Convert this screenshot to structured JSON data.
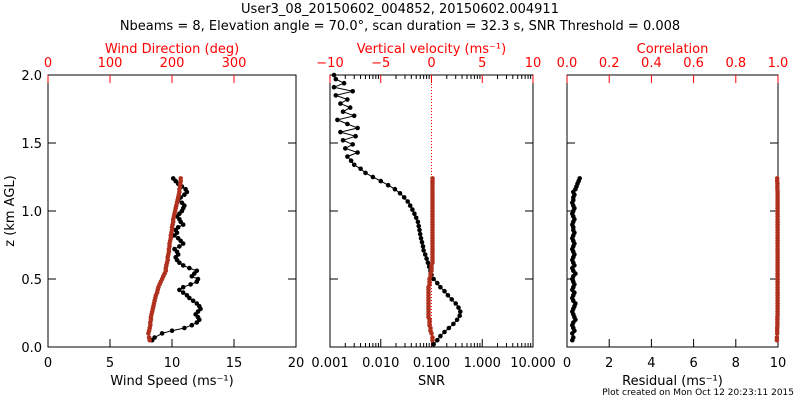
{
  "header": {
    "title_line1": "User3_08_20150602_004852, 20150602.004911",
    "title_line2": "Nbeams = 8, Elevation angle = 70.0°, scan duration = 32.3 s, SNR Threshold = 0.008"
  },
  "footer": {
    "created": "Plot created on Mon Oct 12 20:23:11 2015"
  },
  "colors": {
    "primary": "#000000",
    "secondary": "#b0301e",
    "axis_red": "#ff0000"
  },
  "chart_data": [
    {
      "type": "scatter",
      "panel": "wind",
      "ylabel": "z (km AGL)",
      "ylim": [
        0,
        2.0
      ],
      "yticks": [
        "0.0",
        "0.5",
        "1.0",
        "1.5",
        "2.0"
      ],
      "bottom_axis": {
        "label": "Wind Speed (ms⁻¹)",
        "lim": [
          0,
          20
        ],
        "ticks": [
          "0",
          "5",
          "10",
          "15",
          "20"
        ]
      },
      "top_axis": {
        "label": "Wind Direction (deg)",
        "lim": [
          0,
          400
        ],
        "ticks": [
          "0",
          "100",
          "200",
          "300"
        ]
      },
      "series": [
        {
          "axis": "bottom",
          "color": "black",
          "z": [
            0.05,
            0.07,
            0.1,
            0.12,
            0.14,
            0.16,
            0.18,
            0.2,
            0.22,
            0.24,
            0.26,
            0.28,
            0.3,
            0.32,
            0.34,
            0.36,
            0.38,
            0.4,
            0.42,
            0.44,
            0.46,
            0.48,
            0.5,
            0.52,
            0.54,
            0.56,
            0.58,
            0.6,
            0.62,
            0.64,
            0.66,
            0.68,
            0.7,
            0.72,
            0.74,
            0.76,
            0.78,
            0.8,
            0.82,
            0.84,
            0.86,
            0.88,
            0.9,
            0.92,
            0.94,
            0.96,
            0.98,
            1.0,
            1.02,
            1.04,
            1.06,
            1.08,
            1.1,
            1.12,
            1.14,
            1.16,
            1.18,
            1.2,
            1.22,
            1.24
          ],
          "values": [
            8.4,
            8.6,
            9.2,
            10.0,
            11.0,
            11.6,
            12.0,
            12.2,
            12.1,
            11.9,
            12.1,
            12.3,
            12.2,
            12.0,
            11.7,
            11.4,
            11.2,
            10.9,
            10.6,
            10.9,
            11.5,
            12.0,
            12.1,
            11.6,
            11.8,
            12.0,
            11.4,
            10.9,
            10.6,
            10.4,
            10.3,
            10.5,
            10.4,
            10.2,
            10.6,
            10.9,
            10.7,
            10.5,
            10.2,
            10.4,
            10.3,
            10.5,
            10.9,
            10.7,
            10.6,
            10.4,
            10.6,
            10.8,
            10.9,
            11.0,
            10.8,
            10.5,
            10.7,
            11.0,
            11.2,
            11.1,
            10.8,
            10.5,
            10.3,
            10.1
          ]
        },
        {
          "axis": "top",
          "color": "red",
          "z": [
            0.05,
            0.07,
            0.1,
            0.12,
            0.14,
            0.16,
            0.18,
            0.2,
            0.22,
            0.24,
            0.26,
            0.28,
            0.3,
            0.32,
            0.34,
            0.36,
            0.38,
            0.4,
            0.42,
            0.44,
            0.46,
            0.48,
            0.5,
            0.52,
            0.54,
            0.56,
            0.58,
            0.6,
            0.62,
            0.64,
            0.66,
            0.68,
            0.7,
            0.72,
            0.74,
            0.76,
            0.78,
            0.8,
            0.82,
            0.84,
            0.86,
            0.88,
            0.9,
            0.92,
            0.94,
            0.96,
            0.98,
            1.0,
            1.02,
            1.04,
            1.06,
            1.08,
            1.1,
            1.12,
            1.14,
            1.16,
            1.18,
            1.2,
            1.22,
            1.24
          ],
          "values": [
            164,
            163,
            162,
            163,
            164,
            165,
            165,
            166,
            166,
            167,
            168,
            169,
            170,
            171,
            172,
            173,
            174,
            176,
            177,
            178,
            180,
            182,
            184,
            186,
            188,
            190,
            190,
            191,
            192,
            193,
            193,
            194,
            195,
            195,
            196,
            196,
            197,
            198,
            198,
            199,
            200,
            200,
            201,
            202,
            202,
            203,
            204,
            205,
            206,
            207,
            208,
            209,
            210,
            211,
            212,
            212,
            213,
            213,
            214,
            214
          ]
        }
      ]
    },
    {
      "type": "scatter",
      "panel": "snr",
      "ylim": [
        0,
        2.0
      ],
      "bottom_axis": {
        "label": "SNR",
        "scale": "log",
        "lim": [
          0.001,
          10
        ],
        "ticks": [
          "0.001",
          "0.010",
          "0.100",
          "1.000",
          "10.000"
        ]
      },
      "top_axis": {
        "label": "Vertical velocity (ms⁻¹)",
        "lim": [
          -10,
          10
        ],
        "ticks": [
          "−10",
          "−5",
          "0",
          "5",
          "10"
        ]
      },
      "series": [
        {
          "axis": "bottom",
          "color": "black",
          "z": [
            0.02,
            0.05,
            0.08,
            0.11,
            0.14,
            0.17,
            0.2,
            0.23,
            0.26,
            0.29,
            0.32,
            0.35,
            0.38,
            0.41,
            0.44,
            0.47,
            0.5,
            0.53,
            0.56,
            0.59,
            0.62,
            0.65,
            0.68,
            0.71,
            0.74,
            0.77,
            0.8,
            0.83,
            0.86,
            0.89,
            0.92,
            0.95,
            0.98,
            1.01,
            1.04,
            1.07,
            1.1,
            1.13,
            1.16,
            1.19,
            1.22,
            1.25,
            1.28,
            1.31,
            1.34,
            1.37,
            1.4,
            1.43,
            1.46,
            1.49,
            1.52,
            1.55,
            1.58,
            1.61,
            1.64,
            1.67,
            1.7,
            1.73,
            1.76,
            1.79,
            1.82,
            1.85,
            1.88,
            1.91,
            1.94,
            1.97,
            2.0
          ],
          "values": [
            0.11,
            0.13,
            0.15,
            0.18,
            0.22,
            0.27,
            0.32,
            0.36,
            0.37,
            0.34,
            0.3,
            0.25,
            0.21,
            0.18,
            0.15,
            0.13,
            0.11,
            0.1,
            0.095,
            0.09,
            0.085,
            0.08,
            0.075,
            0.07,
            0.068,
            0.065,
            0.062,
            0.06,
            0.058,
            0.056,
            0.054,
            0.05,
            0.046,
            0.042,
            0.038,
            0.034,
            0.029,
            0.024,
            0.019,
            0.014,
            0.01,
            0.007,
            0.005,
            0.004,
            0.003,
            0.0026,
            0.0022,
            0.0035,
            0.002,
            0.0028,
            0.0018,
            0.0032,
            0.0016,
            0.0035,
            0.0022,
            0.0014,
            0.003,
            0.0018,
            0.0025,
            0.0016,
            0.0022,
            0.0013,
            0.0028,
            0.0012,
            0.0019,
            0.0013,
            0.0012
          ]
        },
        {
          "axis": "top",
          "color": "red",
          "z": [
            0.05,
            0.07,
            0.1,
            0.12,
            0.14,
            0.16,
            0.18,
            0.2,
            0.22,
            0.24,
            0.26,
            0.28,
            0.3,
            0.32,
            0.34,
            0.36,
            0.38,
            0.4,
            0.42,
            0.44,
            0.46,
            0.48,
            0.5,
            0.52,
            0.54,
            0.56,
            0.58,
            0.6,
            0.62,
            0.64,
            0.66,
            0.68,
            0.7,
            0.72,
            0.74,
            0.76,
            0.78,
            0.8,
            0.82,
            0.84,
            0.86,
            0.88,
            0.9,
            0.92,
            0.94,
            0.96,
            0.98,
            1.0,
            1.02,
            1.04,
            1.06,
            1.08,
            1.1,
            1.12,
            1.14,
            1.16,
            1.18,
            1.2,
            1.22,
            1.24
          ],
          "values": [
            0.1,
            0.1,
            0.0,
            -0.1,
            -0.1,
            -0.2,
            -0.2,
            -0.2,
            -0.3,
            -0.3,
            -0.3,
            -0.3,
            -0.3,
            -0.3,
            -0.3,
            -0.3,
            -0.3,
            -0.3,
            -0.3,
            -0.3,
            -0.2,
            -0.2,
            -0.2,
            -0.1,
            -0.1,
            0.0,
            0.0,
            0.0,
            0.1,
            0.1,
            0.1,
            0.1,
            0.1,
            0.1,
            0.1,
            0.1,
            0.1,
            0.1,
            0.1,
            0.1,
            0.1,
            0.1,
            0.1,
            0.1,
            0.1,
            0.1,
            0.1,
            0.1,
            0.1,
            0.1,
            0.1,
            0.1,
            0.1,
            0.1,
            0.1,
            0.1,
            0.1,
            0.1,
            0.1,
            0.1
          ]
        }
      ]
    },
    {
      "type": "scatter",
      "panel": "residual",
      "ylim": [
        0,
        2.0
      ],
      "bottom_axis": {
        "label": "Residual (ms⁻¹)",
        "lim": [
          0,
          10
        ],
        "ticks": [
          "0",
          "2",
          "4",
          "6",
          "8",
          "10"
        ]
      },
      "top_axis": {
        "label": "Correlation",
        "lim": [
          0,
          1.0
        ],
        "ticks": [
          "0.0",
          "0.2",
          "0.4",
          "0.6",
          "0.8",
          "1.0"
        ]
      },
      "series": [
        {
          "axis": "bottom",
          "color": "black",
          "z": [
            0.05,
            0.07,
            0.1,
            0.12,
            0.14,
            0.16,
            0.18,
            0.2,
            0.22,
            0.24,
            0.26,
            0.28,
            0.3,
            0.32,
            0.34,
            0.36,
            0.38,
            0.4,
            0.42,
            0.44,
            0.46,
            0.48,
            0.5,
            0.52,
            0.54,
            0.56,
            0.58,
            0.6,
            0.62,
            0.64,
            0.66,
            0.68,
            0.7,
            0.72,
            0.74,
            0.76,
            0.78,
            0.8,
            0.82,
            0.84,
            0.86,
            0.88,
            0.9,
            0.92,
            0.94,
            0.96,
            0.98,
            1.0,
            1.02,
            1.04,
            1.06,
            1.08,
            1.1,
            1.12,
            1.14,
            1.16,
            1.18,
            1.2,
            1.22,
            1.24
          ],
          "values": [
            0.25,
            0.3,
            0.25,
            0.35,
            0.3,
            0.25,
            0.3,
            0.4,
            0.35,
            0.3,
            0.25,
            0.3,
            0.35,
            0.4,
            0.3,
            0.25,
            0.3,
            0.35,
            0.25,
            0.3,
            0.35,
            0.3,
            0.25,
            0.3,
            0.4,
            0.3,
            0.25,
            0.35,
            0.3,
            0.25,
            0.3,
            0.35,
            0.3,
            0.25,
            0.3,
            0.35,
            0.3,
            0.25,
            0.3,
            0.35,
            0.3,
            0.3,
            0.25,
            0.3,
            0.35,
            0.3,
            0.25,
            0.3,
            0.35,
            0.3,
            0.25,
            0.3,
            0.3,
            0.35,
            0.3,
            0.4,
            0.45,
            0.5,
            0.55,
            0.6
          ]
        },
        {
          "axis": "top",
          "color": "red",
          "z": [
            0.05,
            0.07,
            0.1,
            0.12,
            0.14,
            0.16,
            0.18,
            0.2,
            0.22,
            0.24,
            0.26,
            0.28,
            0.3,
            0.32,
            0.34,
            0.36,
            0.38,
            0.4,
            0.42,
            0.44,
            0.46,
            0.48,
            0.5,
            0.52,
            0.54,
            0.56,
            0.58,
            0.6,
            0.62,
            0.64,
            0.66,
            0.68,
            0.7,
            0.72,
            0.74,
            0.76,
            0.78,
            0.8,
            0.82,
            0.84,
            0.86,
            0.88,
            0.9,
            0.92,
            0.94,
            0.96,
            0.98,
            1.0,
            1.02,
            1.04,
            1.06,
            1.08,
            1.1,
            1.12,
            1.14,
            1.16,
            1.18,
            1.2,
            1.22,
            1.24
          ],
          "values": [
            0.995,
            0.995,
            0.996,
            0.996,
            0.996,
            0.997,
            0.997,
            0.997,
            0.997,
            0.998,
            0.998,
            0.998,
            0.998,
            0.998,
            0.998,
            0.998,
            0.998,
            0.998,
            0.998,
            0.998,
            0.998,
            0.998,
            0.998,
            0.998,
            0.998,
            0.998,
            0.998,
            0.998,
            0.998,
            0.998,
            0.998,
            0.998,
            0.998,
            0.998,
            0.998,
            0.998,
            0.998,
            0.998,
            0.998,
            0.998,
            0.998,
            0.998,
            0.998,
            0.998,
            0.998,
            0.998,
            0.998,
            0.998,
            0.998,
            0.998,
            0.998,
            0.998,
            0.998,
            0.998,
            0.998,
            0.997,
            0.997,
            0.997,
            0.996,
            0.996
          ]
        }
      ]
    }
  ]
}
